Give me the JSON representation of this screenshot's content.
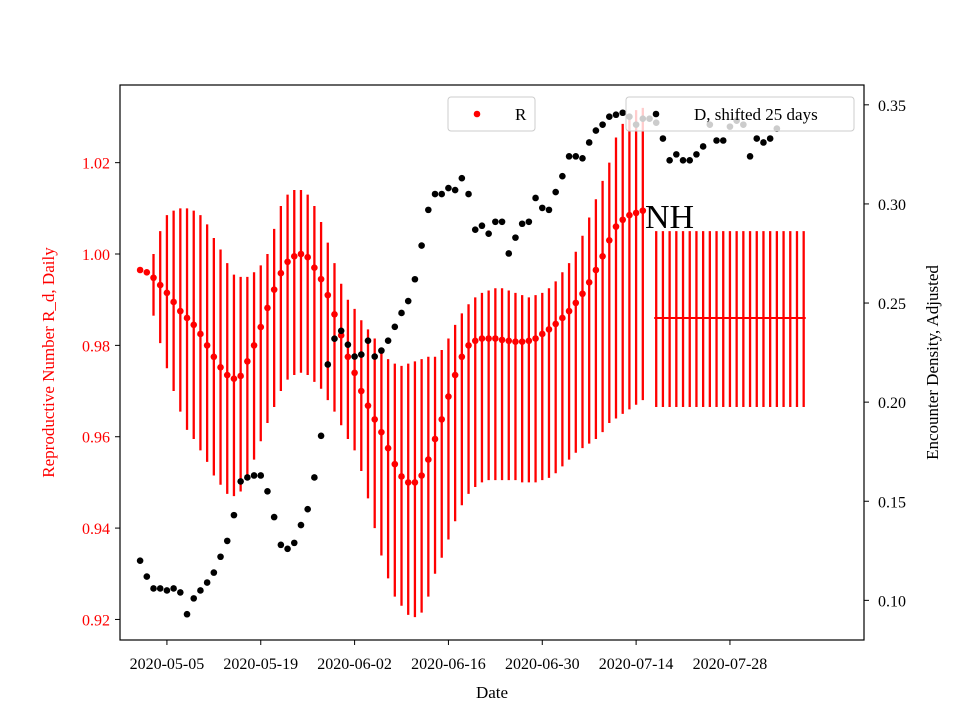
{
  "chart_data": {
    "type": "scatter",
    "title": "NH",
    "xlabel": "Date",
    "ylabel_left": "Reproductive Number R_d, Daily",
    "ylabel_right": "Encounter Density, Adjusted",
    "x_tick_labels": [
      "2020-05-05",
      "2020-05-19",
      "2020-06-02",
      "2020-06-16",
      "2020-06-30",
      "2020-07-14",
      "2020-07-28"
    ],
    "y_left_ticks": [
      "0.92",
      "0.94",
      "0.96",
      "0.98",
      "1.00",
      "1.02"
    ],
    "y_right_ticks": [
      "0.10",
      "0.15",
      "0.20",
      "0.25",
      "0.30",
      "0.35"
    ],
    "xlim": [
      "2020-04-28",
      "2020-08-17"
    ],
    "ylim_left": [
      0.9155,
      1.037
    ],
    "ylim_right": [
      0.08,
      0.36
    ],
    "colors": {
      "R": "#ff0000",
      "D": "#000000"
    },
    "legend": [
      {
        "label": "R",
        "placement": "upper-center",
        "color": "#ff0000"
      },
      {
        "label": "D, shifted 25 days",
        "placement": "upper-right",
        "color": "#000000"
      }
    ],
    "series": [
      {
        "name": "R",
        "axis": "left",
        "x": [
          "2020-05-01",
          "2020-05-02",
          "2020-05-03",
          "2020-05-04",
          "2020-05-05",
          "2020-05-06",
          "2020-05-07",
          "2020-05-08",
          "2020-05-09",
          "2020-05-10",
          "2020-05-11",
          "2020-05-12",
          "2020-05-13",
          "2020-05-14",
          "2020-05-15",
          "2020-05-16",
          "2020-05-17",
          "2020-05-18",
          "2020-05-19",
          "2020-05-20",
          "2020-05-21",
          "2020-05-22",
          "2020-05-23",
          "2020-05-24",
          "2020-05-25",
          "2020-05-26",
          "2020-05-27",
          "2020-05-28",
          "2020-05-29",
          "2020-05-30",
          "2020-05-31",
          "2020-06-01",
          "2020-06-02",
          "2020-06-03",
          "2020-06-04",
          "2020-06-05",
          "2020-06-06",
          "2020-06-07",
          "2020-06-08",
          "2020-06-09",
          "2020-06-10",
          "2020-06-11",
          "2020-06-12",
          "2020-06-13",
          "2020-06-14",
          "2020-06-15",
          "2020-06-16",
          "2020-06-17",
          "2020-06-18",
          "2020-06-19",
          "2020-06-20",
          "2020-06-21",
          "2020-06-22",
          "2020-06-23",
          "2020-06-24",
          "2020-06-25",
          "2020-06-26",
          "2020-06-27",
          "2020-06-28",
          "2020-06-29",
          "2020-06-30",
          "2020-07-01",
          "2020-07-02",
          "2020-07-03",
          "2020-07-04",
          "2020-07-05",
          "2020-07-06",
          "2020-07-07",
          "2020-07-08",
          "2020-07-09",
          "2020-07-10",
          "2020-07-11",
          "2020-07-12",
          "2020-07-13",
          "2020-07-14",
          "2020-07-15"
        ],
        "y": [
          0.9965,
          0.996,
          0.9948,
          0.9932,
          0.9915,
          0.9895,
          0.9875,
          0.986,
          0.9845,
          0.9825,
          0.98,
          0.9775,
          0.9752,
          0.9735,
          0.9727,
          0.9733,
          0.9765,
          0.98,
          0.984,
          0.9882,
          0.9922,
          0.9958,
          0.9983,
          0.9995,
          1.0,
          0.9993,
          0.997,
          0.9945,
          0.991,
          0.9868,
          0.9822,
          0.9775,
          0.974,
          0.97,
          0.9668,
          0.9638,
          0.961,
          0.9575,
          0.954,
          0.9513,
          0.95,
          0.95,
          0.9515,
          0.955,
          0.9595,
          0.9638,
          0.9688,
          0.9735,
          0.9775,
          0.98,
          0.981,
          0.9815,
          0.9815,
          0.9815,
          0.9812,
          0.981,
          0.9808,
          0.9808,
          0.981,
          0.9815,
          0.9825,
          0.9835,
          0.9847,
          0.986,
          0.9875,
          0.9893,
          0.9913,
          0.9938,
          0.9965,
          0.9995,
          1.003,
          1.006,
          1.0075,
          1.0085,
          1.009,
          1.0095
        ],
        "err_low": [
          0.996,
          0.9955,
          0.9865,
          0.9805,
          0.975,
          0.97,
          0.9655,
          0.9615,
          0.9595,
          0.957,
          0.9545,
          0.9515,
          0.9495,
          0.9475,
          0.947,
          0.948,
          0.9515,
          0.955,
          0.959,
          0.963,
          0.9665,
          0.97,
          0.9725,
          0.9735,
          0.974,
          0.9735,
          0.972,
          0.9705,
          0.968,
          0.9655,
          0.9625,
          0.9595,
          0.957,
          0.9525,
          0.9465,
          0.94,
          0.934,
          0.929,
          0.925,
          0.923,
          0.921,
          0.9205,
          0.9215,
          0.925,
          0.93,
          0.9335,
          0.9375,
          0.9415,
          0.945,
          0.9475,
          0.949,
          0.95,
          0.9505,
          0.9505,
          0.9505,
          0.9505,
          0.9505,
          0.95,
          0.95,
          0.95,
          0.9505,
          0.951,
          0.952,
          0.9535,
          0.955,
          0.9565,
          0.9575,
          0.9585,
          0.9595,
          0.961,
          0.963,
          0.964,
          0.965,
          0.966,
          0.967,
          0.968
        ],
        "err_high": [
          0.997,
          0.9965,
          1.0,
          1.005,
          1.0085,
          1.0095,
          1.01,
          1.01,
          1.0095,
          1.0085,
          1.0065,
          1.0035,
          1.001,
          0.998,
          0.9955,
          0.995,
          0.995,
          0.996,
          0.9975,
          1.0,
          1.0055,
          1.0105,
          1.013,
          1.014,
          1.014,
          1.013,
          1.0105,
          1.007,
          1.0025,
          0.998,
          0.9935,
          0.99,
          0.988,
          0.9855,
          0.9835,
          0.9815,
          0.979,
          0.977,
          0.976,
          0.9755,
          0.976,
          0.9765,
          0.977,
          0.9775,
          0.9775,
          0.979,
          0.9815,
          0.9845,
          0.987,
          0.989,
          0.9905,
          0.9915,
          0.992,
          0.9925,
          0.9925,
          0.992,
          0.9915,
          0.991,
          0.9905,
          0.991,
          0.9915,
          0.9925,
          0.994,
          0.996,
          0.998,
          1.0005,
          1.004,
          1.008,
          1.012,
          1.016,
          1.02,
          1.0255,
          1.0285,
          1.03,
          1.0315,
          1.032
        ]
      },
      {
        "name": "R (projection)",
        "axis": "left",
        "x_range": [
          "2020-07-17",
          "2020-08-08"
        ],
        "y": 0.986,
        "err_low": 0.9665,
        "err_high": 1.005
      },
      {
        "name": "D, shifted 25 days",
        "axis": "right",
        "x": [
          "2020-05-01",
          "2020-05-02",
          "2020-05-03",
          "2020-05-04",
          "2020-05-05",
          "2020-05-06",
          "2020-05-07",
          "2020-05-08",
          "2020-05-09",
          "2020-05-10",
          "2020-05-11",
          "2020-05-12",
          "2020-05-13",
          "2020-05-14",
          "2020-05-15",
          "2020-05-16",
          "2020-05-17",
          "2020-05-18",
          "2020-05-19",
          "2020-05-20",
          "2020-05-21",
          "2020-05-22",
          "2020-05-23",
          "2020-05-24",
          "2020-05-25",
          "2020-05-26",
          "2020-05-27",
          "2020-05-28",
          "2020-05-29",
          "2020-05-30",
          "2020-05-31",
          "2020-06-01",
          "2020-06-02",
          "2020-06-03",
          "2020-06-04",
          "2020-06-05",
          "2020-06-06",
          "2020-06-07",
          "2020-06-08",
          "2020-06-09",
          "2020-06-10",
          "2020-06-11",
          "2020-06-12",
          "2020-06-13",
          "2020-06-14",
          "2020-06-15",
          "2020-06-16",
          "2020-06-17",
          "2020-06-18",
          "2020-06-19",
          "2020-06-20",
          "2020-06-21",
          "2020-06-22",
          "2020-06-23",
          "2020-06-24",
          "2020-06-25",
          "2020-06-26",
          "2020-06-27",
          "2020-06-28",
          "2020-06-29",
          "2020-06-30",
          "2020-07-01",
          "2020-07-02",
          "2020-07-03",
          "2020-07-04",
          "2020-07-05",
          "2020-07-06",
          "2020-07-07",
          "2020-07-08",
          "2020-07-09",
          "2020-07-10",
          "2020-07-11",
          "2020-07-12",
          "2020-07-13",
          "2020-07-14",
          "2020-07-15",
          "2020-07-16",
          "2020-07-17",
          "2020-07-18",
          "2020-07-19",
          "2020-07-20",
          "2020-07-21",
          "2020-07-22",
          "2020-07-23",
          "2020-07-24",
          "2020-07-25",
          "2020-07-26",
          "2020-07-27",
          "2020-07-28",
          "2020-07-29",
          "2020-07-30",
          "2020-07-31",
          "2020-08-01",
          "2020-08-02",
          "2020-08-03",
          "2020-08-04"
        ],
        "y": [
          0.12,
          0.112,
          0.106,
          0.106,
          0.105,
          0.106,
          0.104,
          0.093,
          0.101,
          0.105,
          0.109,
          0.114,
          0.122,
          0.13,
          0.143,
          0.16,
          0.162,
          0.163,
          0.163,
          0.155,
          0.142,
          0.128,
          0.126,
          0.129,
          0.138,
          0.146,
          0.162,
          0.183,
          0.219,
          0.232,
          0.236,
          0.229,
          0.223,
          0.224,
          0.231,
          0.223,
          0.226,
          0.231,
          0.238,
          0.245,
          0.251,
          0.262,
          0.279,
          0.297,
          0.305,
          0.305,
          0.308,
          0.307,
          0.313,
          0.305,
          0.287,
          0.289,
          0.285,
          0.291,
          0.291,
          0.275,
          0.283,
          0.29,
          0.291,
          0.303,
          0.298,
          0.297,
          0.306,
          0.314,
          0.324,
          0.324,
          0.323,
          0.331,
          0.337,
          0.34,
          0.344,
          0.345,
          0.346,
          0.344,
          0.34,
          0.343,
          0.343,
          0.341,
          0.333,
          0.322,
          0.325,
          0.322,
          0.322,
          0.325,
          0.329,
          0.34,
          0.332,
          0.332,
          0.339,
          0.342,
          0.34,
          0.324,
          0.333,
          0.331,
          0.333,
          0.338
        ]
      }
    ]
  }
}
